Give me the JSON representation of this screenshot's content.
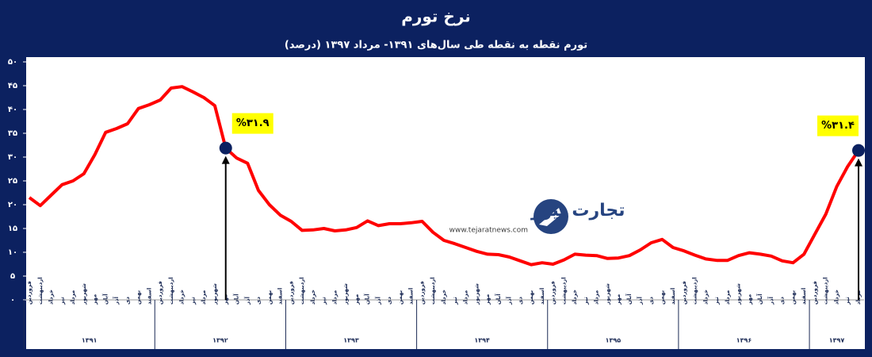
{
  "chart_data": {
    "type": "line",
    "title": "نرخ تورم",
    "subtitle": "تورم نقطه به نقطه طی سال‌های ۱۳۹۱- مرداد ۱۳۹۷ (درصد)",
    "categories": [
      "فروردین",
      "اردیبهشت",
      "خرداد",
      "تیر",
      "مرداد",
      "شهریور",
      "مهر",
      "آبان",
      "آذر",
      "دی",
      "بهمن",
      "اسفند",
      "فروردین",
      "اردیبهشت",
      "خرداد",
      "تیر",
      "مرداد",
      "شهریور",
      "مهر",
      "آبان",
      "آذر",
      "دی",
      "بهمن",
      "اسفند",
      "فروردین",
      "اردیبهشت",
      "خرداد",
      "تیر",
      "مرداد",
      "شهریور",
      "مهر",
      "آبان",
      "آذر",
      "دی",
      "بهمن",
      "اسفند",
      "فروردین",
      "اردیبهشت",
      "خرداد",
      "تیر",
      "مرداد",
      "شهریور",
      "مهر",
      "آبان",
      "آذر",
      "دی",
      "بهمن",
      "اسفند",
      "فروردین",
      "اردیبهشت",
      "خرداد",
      "تیر",
      "مرداد",
      "شهریور",
      "مهر",
      "آبان",
      "آذر",
      "دی",
      "بهمن",
      "اسفند",
      "فروردین",
      "اردیبهشت",
      "خرداد",
      "تیر",
      "مرداد",
      "شهریور",
      "مهر",
      "آبان",
      "آذر",
      "دی",
      "بهمن",
      "اسفند",
      "فروردین",
      "اردیبهشت",
      "خرداد",
      "تیر",
      "مرداد"
    ],
    "years": [
      "۱۳۹۱",
      "۱۳۹۲",
      "۱۳۹۳",
      "۱۳۹۴",
      "۱۳۹۵",
      "۱۳۹۶",
      "۱۳۹۷"
    ],
    "values": [
      21.5,
      19.8,
      22,
      24.2,
      25,
      26.5,
      30.5,
      35.2,
      36,
      37,
      40.2,
      41,
      42,
      44.5,
      44.8,
      43.7,
      42.5,
      40.8,
      31.9,
      29.8,
      28.7,
      23,
      20,
      17.8,
      16.5,
      14.6,
      14.7,
      15,
      14.5,
      14.7,
      15.2,
      16.6,
      15.6,
      16,
      16,
      16.2,
      16.5,
      14.2,
      12.5,
      11.8,
      11,
      10.2,
      9.6,
      9.5,
      9,
      8.2,
      7.4,
      7.8,
      7.5,
      8.4,
      9.6,
      9.4,
      9.3,
      8.7,
      8.8,
      9.3,
      10.5,
      12,
      12.7,
      11,
      10.3,
      9.4,
      8.6,
      8.3,
      8.3,
      9.3,
      9.9,
      9.6,
      9.2,
      8.2,
      7.8,
      9.6,
      13.8,
      18,
      23.8,
      28,
      31.4
    ],
    "value_labels": [
      null,
      null,
      null,
      null,
      null,
      null,
      null,
      null,
      null,
      null,
      null,
      null,
      null,
      null,
      null,
      null,
      null,
      null,
      "%۳۱.۹",
      null,
      null,
      null,
      null,
      null,
      null,
      null,
      null,
      null,
      null,
      null,
      null,
      null,
      null,
      null,
      null,
      null,
      null,
      null,
      null,
      null,
      null,
      null,
      null,
      null,
      null,
      null,
      null,
      null,
      null,
      null,
      null,
      null,
      null,
      null,
      null,
      null,
      null,
      null,
      null,
      null,
      null,
      null,
      null,
      null,
      null,
      null,
      null,
      null,
      null,
      null,
      null,
      null,
      null,
      null,
      null,
      null,
      "%۳۱.۴"
    ],
    "color": "#ff0000",
    "marker_color": "#0c2160",
    "label_color": "#ffff00",
    "ylim": [
      0,
      50
    ],
    "yticks": [
      {
        "value": 0,
        "label": "۰"
      },
      {
        "value": 5,
        "label": "۵"
      },
      {
        "value": 10,
        "label": "۱۰"
      },
      {
        "value": 15,
        "label": "۱۵"
      },
      {
        "value": 20,
        "label": "۲۰"
      },
      {
        "value": 25,
        "label": "۲۵"
      },
      {
        "value": 30,
        "label": "۳۰"
      },
      {
        "value": 35,
        "label": "۳۵"
      },
      {
        "value": 40,
        "label": "۴۰"
      },
      {
        "value": 45,
        "label": "۴۵"
      },
      {
        "value": 50,
        "label": "۵۰"
      }
    ],
    "grid": false,
    "watermark": {
      "name": "تجارت نیوز",
      "url": "www.tejaratnews.com"
    }
  }
}
